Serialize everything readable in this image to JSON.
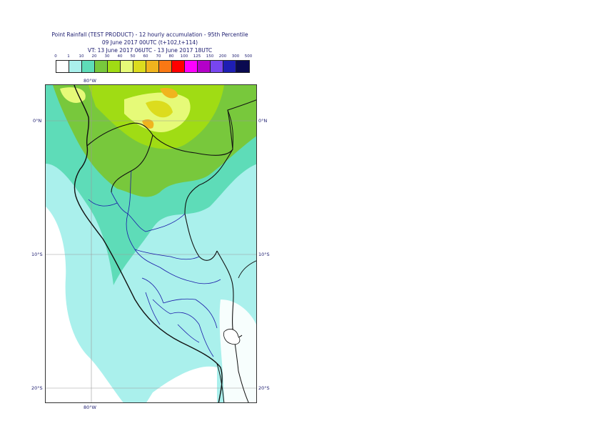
{
  "title": {
    "line1": "Point Rainfall (TEST PRODUCT) - 12 hourly accumulation - 95th Percentile",
    "line2": "09 June 2017 00UTC (t+102,t+114)",
    "line3": "VT: 13 June 2017 06UTC - 13 June 2017 18UTC"
  },
  "legend": {
    "thresholds": [
      "0",
      "1",
      "10",
      "20",
      "30",
      "40",
      "50",
      "60",
      "70",
      "80",
      "100",
      "125",
      "150",
      "200",
      "300",
      "500"
    ],
    "colors": [
      "#ffffff",
      "#aaf0ec",
      "#5edcb8",
      "#78c83c",
      "#a0dc14",
      "#e6fa78",
      "#dcdc1e",
      "#f0b41e",
      "#fa7814",
      "#ff0000",
      "#ff00ff",
      "#b400c8",
      "#7846f0",
      "#1e1eb4",
      "#0a0a50"
    ]
  },
  "map": {
    "lat_labels": [
      "0°N",
      "10°S",
      "20°S"
    ],
    "lon_labels": [
      "80°W"
    ]
  }
}
